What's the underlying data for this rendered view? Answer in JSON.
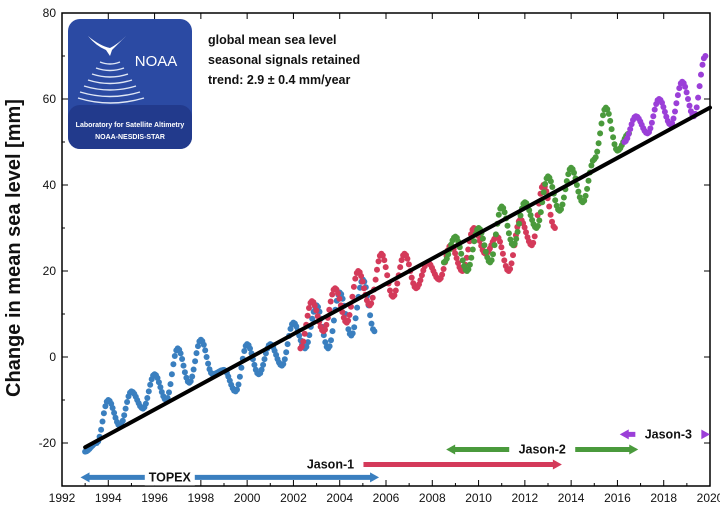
{
  "logo": {
    "brand": "NOAA",
    "line1": "Laboratory for Satellite Altimetry",
    "line2": "NOAA-NESDIS-STAR",
    "bg_color": "#2b4aa3"
  },
  "annotations": {
    "line1": "global mean sea level",
    "line2": "seasonal signals retained",
    "line3": "trend:  2.9 ± 0.4 mm/year"
  },
  "chart_data": {
    "type": "scatter",
    "title": "",
    "xlabel": "",
    "ylabel": "Change in mean sea level [mm]",
    "xlim": [
      1992,
      2020
    ],
    "ylim": [
      -30,
      80
    ],
    "xticks": [
      1992,
      1994,
      1996,
      1998,
      2000,
      2002,
      2004,
      2006,
      2008,
      2010,
      2012,
      2014,
      2016,
      2018,
      2020
    ],
    "yticks": [
      -20,
      0,
      20,
      40,
      60,
      80
    ],
    "grid": false,
    "trend": {
      "slope_mm_per_year": 2.9,
      "uncertainty": 0.4,
      "x": [
        1993,
        2020
      ],
      "y": [
        -21,
        58
      ],
      "color": "#000000"
    },
    "series": [
      {
        "name": "TOPEX",
        "color": "#3a7fbf",
        "x": [
          1993.0,
          1993.5,
          1994.0,
          1994.5,
          1995.0,
          1995.5,
          1996.0,
          1996.5,
          1997.0,
          1997.5,
          1998.0,
          1998.5,
          1999.0,
          1999.5,
          2000.0,
          2000.5,
          2001.0,
          2001.5,
          2002.0,
          2002.5,
          2003.0,
          2003.5,
          2004.0,
          2004.5,
          2005.0,
          2005.5
        ],
        "y": [
          -22,
          -20,
          -10,
          -16,
          -8,
          -12,
          -4,
          -10,
          2,
          -6,
          4,
          -4,
          -3,
          -8,
          3,
          -4,
          3,
          -2,
          8,
          2,
          12,
          2,
          15,
          5,
          18,
          6
        ]
      },
      {
        "name": "Jason-1",
        "color": "#d43a5a",
        "x": [
          2002.3,
          2002.8,
          2003.3,
          2003.8,
          2004.3,
          2004.8,
          2005.3,
          2005.8,
          2006.3,
          2006.8,
          2007.3,
          2007.8,
          2008.3,
          2008.8,
          2009.3,
          2009.8,
          2010.3,
          2010.8,
          2011.3,
          2011.8,
          2012.3,
          2012.8,
          2013.3
        ],
        "y": [
          2,
          13,
          6,
          16,
          8,
          20,
          12,
          24,
          14,
          24,
          16,
          22,
          18,
          26,
          20,
          30,
          24,
          28,
          20,
          32,
          26,
          40,
          30
        ]
      },
      {
        "name": "Jason-2",
        "color": "#4a9a3c",
        "x": [
          2008.5,
          2009.0,
          2009.5,
          2010.0,
          2010.5,
          2011.0,
          2011.5,
          2012.0,
          2012.5,
          2013.0,
          2013.5,
          2014.0,
          2014.5,
          2015.0,
          2015.5,
          2016.0,
          2016.5
        ],
        "y": [
          22,
          28,
          20,
          30,
          22,
          35,
          26,
          36,
          30,
          42,
          34,
          44,
          36,
          46,
          58,
          48,
          52
        ]
      },
      {
        "name": "Jason-3",
        "color": "#9b3fd8",
        "x": [
          2016.3,
          2016.8,
          2017.3,
          2017.8,
          2018.3,
          2018.8,
          2019.3,
          2019.8
        ],
        "y": [
          50,
          56,
          52,
          60,
          54,
          64,
          56,
          70
        ]
      }
    ],
    "missions": [
      {
        "name": "TOPEX",
        "start": 1992.8,
        "end": 2005.7,
        "color": "#3a7fbf",
        "y": -28
      },
      {
        "name": "Jason-1",
        "start": 2002.2,
        "end": 2013.6,
        "color": "#d43a5a",
        "y": -25
      },
      {
        "name": "Jason-2",
        "start": 2008.6,
        "end": 2016.9,
        "color": "#4a9a3c",
        "y": -21.5
      },
      {
        "name": "Jason-3",
        "start": 2016.1,
        "end": 2020.0,
        "color": "#9b3fd8",
        "y": -18
      }
    ]
  }
}
